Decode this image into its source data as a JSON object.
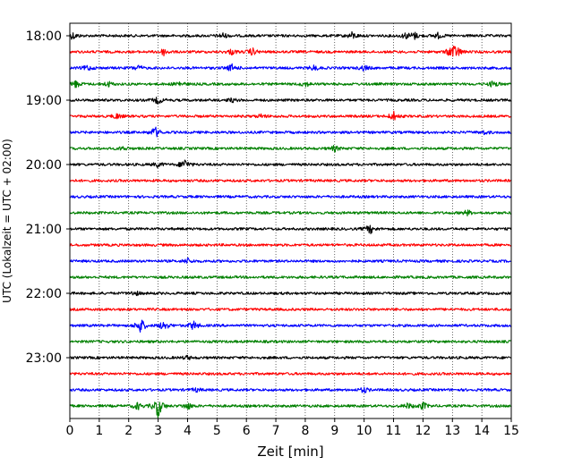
{
  "chart_data": {
    "type": "line",
    "subtype": "helicorder",
    "xlabel": "Zeit  [min]",
    "ylabel": "UTC (Lokalzeit = UTC + 02:00)",
    "xlim": [
      0,
      15
    ],
    "x_ticks": [
      "0",
      "1",
      "2",
      "3",
      "4",
      "5",
      "6",
      "7",
      "8",
      "9",
      "10",
      "11",
      "12",
      "13",
      "14",
      "15"
    ],
    "y_ticks": [
      "18:00",
      "19:00",
      "20:00",
      "21:00",
      "22:00",
      "23:00"
    ],
    "grid": "vertical-dotted",
    "trace_colors": [
      "#000000",
      "#ff0000",
      "#0000ff",
      "#008000"
    ],
    "traces": [
      {
        "start": "18:00",
        "events": [
          [
            0.1,
            4
          ],
          [
            5.2,
            3
          ],
          [
            9.6,
            4
          ],
          [
            11.4,
            3
          ],
          [
            11.7,
            4
          ],
          [
            12.5,
            3
          ]
        ]
      },
      {
        "start": "18:15",
        "events": [
          [
            3.2,
            4
          ],
          [
            5.5,
            3
          ],
          [
            6.2,
            4
          ],
          [
            13.0,
            9
          ],
          [
            13.2,
            3
          ]
        ]
      },
      {
        "start": "18:30",
        "events": [
          [
            0.6,
            3
          ],
          [
            2.3,
            3
          ],
          [
            5.5,
            4
          ],
          [
            8.3,
            3
          ],
          [
            10.0,
            3
          ]
        ]
      },
      {
        "start": "18:45",
        "events": [
          [
            0.2,
            4
          ],
          [
            1.3,
            3
          ],
          [
            3.7,
            3
          ],
          [
            8.0,
            3
          ],
          [
            14.4,
            4
          ]
        ]
      },
      {
        "start": "19:00",
        "events": [
          [
            3.0,
            4
          ],
          [
            5.5,
            2
          ]
        ]
      },
      {
        "start": "19:15",
        "events": [
          [
            1.6,
            3
          ],
          [
            6.5,
            2
          ],
          [
            11.0,
            5
          ]
        ]
      },
      {
        "start": "19:30",
        "events": [
          [
            2.9,
            6
          ],
          [
            14.1,
            2
          ]
        ]
      },
      {
        "start": "19:45",
        "events": [
          [
            1.8,
            2
          ],
          [
            9.0,
            3
          ]
        ]
      },
      {
        "start": "20:00",
        "events": [
          [
            3.0,
            3
          ],
          [
            3.9,
            6
          ]
        ]
      },
      {
        "start": "20:15",
        "events": []
      },
      {
        "start": "20:30",
        "events": []
      },
      {
        "start": "20:45",
        "events": [
          [
            13.5,
            3
          ]
        ]
      },
      {
        "start": "21:00",
        "events": [
          [
            10.2,
            5
          ]
        ]
      },
      {
        "start": "21:15",
        "events": []
      },
      {
        "start": "21:30",
        "events": [
          [
            4.0,
            3
          ]
        ]
      },
      {
        "start": "21:45",
        "events": []
      },
      {
        "start": "22:00",
        "events": [
          [
            2.2,
            3
          ]
        ]
      },
      {
        "start": "22:15",
        "events": []
      },
      {
        "start": "22:30",
        "events": [
          [
            2.4,
            9
          ],
          [
            3.2,
            6
          ],
          [
            4.2,
            5
          ]
        ]
      },
      {
        "start": "22:45",
        "events": []
      },
      {
        "start": "23:00",
        "events": [
          [
            4.0,
            2
          ]
        ]
      },
      {
        "start": "23:15",
        "events": []
      },
      {
        "start": "23:30",
        "events": [
          [
            10.0,
            3
          ],
          [
            4.3,
            2
          ]
        ]
      },
      {
        "start": "23:45",
        "events": [
          [
            2.3,
            4
          ],
          [
            3.0,
            13
          ],
          [
            4.0,
            4
          ],
          [
            11.5,
            3
          ],
          [
            12.0,
            4
          ]
        ]
      }
    ]
  }
}
